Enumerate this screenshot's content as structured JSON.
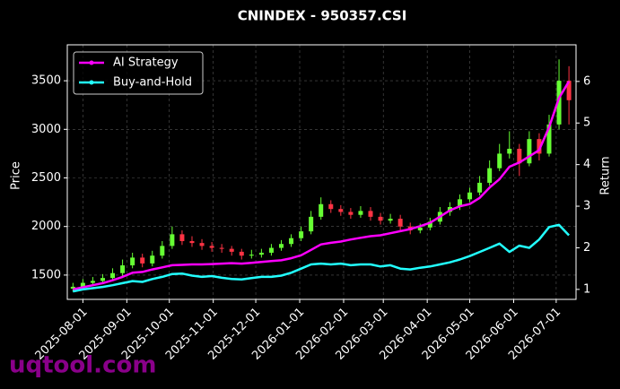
{
  "chart_data": {
    "type": "candlestick",
    "title": "CNINDEX - 950357.CSI",
    "y_label": "Price",
    "y2_label": "Return",
    "watermark": "uqtool.com",
    "x": [
      "2025-07-25",
      "2025-08-01",
      "2025-08-08",
      "2025-08-15",
      "2025-08-22",
      "2025-08-29",
      "2025-09-05",
      "2025-09-12",
      "2025-09-19",
      "2025-09-26",
      "2025-10-03",
      "2025-10-10",
      "2025-10-17",
      "2025-10-24",
      "2025-10-31",
      "2025-11-07",
      "2025-11-14",
      "2025-11-21",
      "2025-11-28",
      "2025-12-05",
      "2025-12-12",
      "2025-12-19",
      "2025-12-26",
      "2026-01-02",
      "2026-01-09",
      "2026-01-16",
      "2026-01-23",
      "2026-01-30",
      "2026-02-06",
      "2026-02-13",
      "2026-02-20",
      "2026-02-27",
      "2026-03-06",
      "2026-03-13",
      "2026-03-20",
      "2026-03-27",
      "2026-04-03",
      "2026-04-10",
      "2026-04-17",
      "2026-04-24",
      "2026-05-01",
      "2026-05-08",
      "2026-05-15",
      "2026-05-22",
      "2026-05-29",
      "2026-06-05",
      "2026-06-12",
      "2026-06-19",
      "2026-06-26",
      "2026-07-03",
      "2026-07-10"
    ],
    "open": [
      1360,
      1380,
      1420,
      1440,
      1470,
      1520,
      1600,
      1680,
      1620,
      1700,
      1800,
      1920,
      1850,
      1830,
      1800,
      1780,
      1770,
      1740,
      1700,
      1710,
      1730,
      1780,
      1820,
      1880,
      1950,
      2100,
      2230,
      2180,
      2150,
      2120,
      2160,
      2100,
      2060,
      2080,
      2000,
      1960,
      1990,
      2050,
      2150,
      2200,
      2280,
      2350,
      2450,
      2600,
      2750,
      2800,
      2650,
      2900,
      2750,
      3050,
      3500
    ],
    "high": [
      1420,
      1460,
      1480,
      1510,
      1570,
      1660,
      1730,
      1720,
      1750,
      1850,
      2000,
      1960,
      1900,
      1870,
      1840,
      1820,
      1800,
      1770,
      1760,
      1770,
      1820,
      1860,
      1920,
      2000,
      2160,
      2300,
      2270,
      2220,
      2190,
      2210,
      2200,
      2140,
      2130,
      2120,
      2040,
      2030,
      2090,
      2200,
      2250,
      2330,
      2400,
      2520,
      2680,
      2850,
      2980,
      2850,
      2980,
      2960,
      3150,
      3720,
      3650
    ],
    "low": [
      1330,
      1350,
      1390,
      1410,
      1440,
      1490,
      1570,
      1580,
      1590,
      1670,
      1770,
      1810,
      1790,
      1760,
      1740,
      1730,
      1700,
      1660,
      1670,
      1680,
      1700,
      1750,
      1790,
      1850,
      1920,
      2070,
      2140,
      2110,
      2080,
      2090,
      2060,
      2020,
      2030,
      1960,
      1920,
      1930,
      1960,
      2020,
      2110,
      2170,
      2250,
      2320,
      2420,
      2570,
      2700,
      2520,
      2620,
      2680,
      2720,
      3000,
      3050
    ],
    "close": [
      1380,
      1420,
      1440,
      1470,
      1520,
      1600,
      1680,
      1620,
      1700,
      1800,
      1920,
      1850,
      1830,
      1800,
      1780,
      1770,
      1740,
      1700,
      1710,
      1730,
      1780,
      1820,
      1880,
      1950,
      2100,
      2230,
      2180,
      2150,
      2120,
      2160,
      2100,
      2060,
      2080,
      2000,
      1960,
      1990,
      2050,
      2150,
      2200,
      2280,
      2350,
      2450,
      2600,
      2750,
      2800,
      2650,
      2900,
      2750,
      3050,
      3500,
      3300
    ],
    "up_color": "#66ff33",
    "down_color": "#ff3344",
    "series": [
      {
        "name": "AI Strategy",
        "color": "#ff00ff",
        "axis": "y2",
        "values": [
          1.0,
          1.05,
          1.1,
          1.15,
          1.22,
          1.3,
          1.4,
          1.42,
          1.48,
          1.53,
          1.58,
          1.59,
          1.6,
          1.6,
          1.61,
          1.62,
          1.63,
          1.62,
          1.64,
          1.66,
          1.68,
          1.7,
          1.75,
          1.82,
          1.95,
          2.08,
          2.12,
          2.15,
          2.2,
          2.24,
          2.28,
          2.3,
          2.35,
          2.4,
          2.45,
          2.52,
          2.6,
          2.75,
          2.9,
          3.0,
          3.05,
          3.2,
          3.45,
          3.65,
          3.95,
          4.05,
          4.2,
          4.35,
          4.9,
          5.6,
          6.0
        ]
      },
      {
        "name": "Buy-and-Hold",
        "color": "#22ffff",
        "axis": "y2",
        "values": [
          0.95,
          1.0,
          1.03,
          1.06,
          1.1,
          1.15,
          1.2,
          1.18,
          1.25,
          1.3,
          1.37,
          1.38,
          1.33,
          1.3,
          1.32,
          1.28,
          1.25,
          1.24,
          1.27,
          1.3,
          1.3,
          1.33,
          1.4,
          1.5,
          1.6,
          1.62,
          1.6,
          1.62,
          1.58,
          1.6,
          1.6,
          1.55,
          1.58,
          1.5,
          1.48,
          1.52,
          1.55,
          1.6,
          1.65,
          1.72,
          1.8,
          1.9,
          2.0,
          2.1,
          1.9,
          2.05,
          2.0,
          2.2,
          2.5,
          2.55,
          2.3
        ]
      }
    ],
    "xlim": [
      "2025-07-21",
      "2026-07-15"
    ],
    "xticks": [
      "2025-08-01",
      "2025-09-01",
      "2025-10-01",
      "2025-11-01",
      "2025-12-01",
      "2026-01-01",
      "2026-02-01",
      "2026-03-01",
      "2026-04-01",
      "2026-05-01",
      "2026-06-01",
      "2026-07-01"
    ],
    "ylim": [
      1250,
      3870
    ],
    "yticks": [
      1500,
      2000,
      2500,
      3000,
      3500
    ],
    "y2lim": [
      0.76,
      6.88
    ],
    "y2ticks": [
      1,
      2,
      3,
      4,
      5,
      6
    ],
    "grid": true,
    "legend": "upper left"
  }
}
